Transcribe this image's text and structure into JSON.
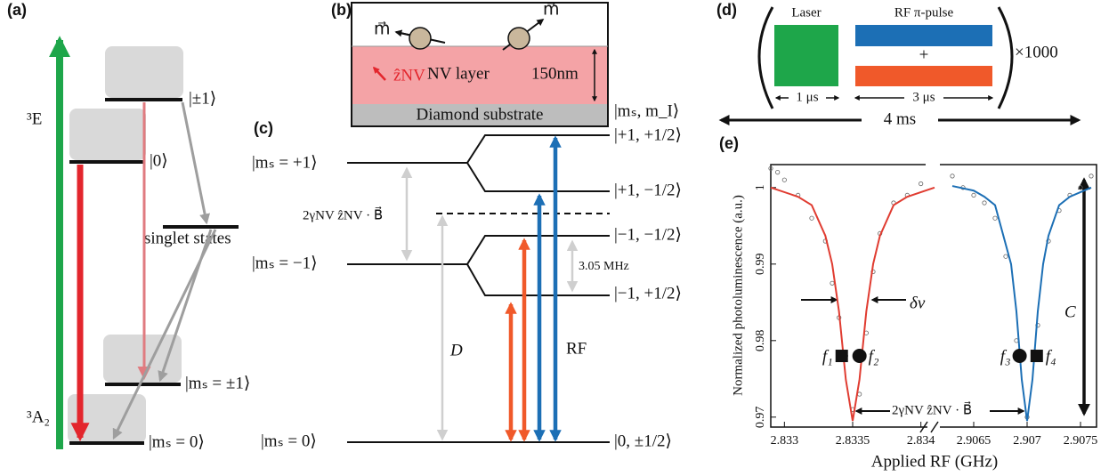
{
  "panel_a": {
    "label": "(a)",
    "excited": "³E",
    "ground": "³A₂",
    "levels": [
      "|±1⟩",
      "|0⟩",
      "singlet states",
      "|mₛ = ±1⟩",
      "|mₛ = 0⟩"
    ]
  },
  "panel_b": {
    "label": "(b)",
    "moment": "m⃗",
    "axis": "ẑNV",
    "layer": "NV layer",
    "thickness": "150nm",
    "substrate": "Diamond substrate"
  },
  "panel_c": {
    "label": "(c)",
    "basis": "|mₛ, m_I⟩",
    "levels_left": [
      "|mₛ = +1⟩",
      "|mₛ = −1⟩",
      "|mₛ = 0⟩"
    ],
    "levels_right": [
      "|+1, +1/2⟩",
      "|+1, −1/2⟩",
      "|−1, −1/2⟩",
      "|−1, +1/2⟩",
      "|0, ±1/2⟩"
    ],
    "zeeman": "2γNV ẑNV · B⃗",
    "zero_field": "D",
    "hyperfine": "3.05 MHz",
    "drive": "RF"
  },
  "panel_d": {
    "label": "(d)",
    "laser": "Laser",
    "rf": "RF π-pulse",
    "plus": "+",
    "repeat": "×1000",
    "laser_time": "1 μs",
    "rf_time": "3 μs",
    "period": "4 ms"
  },
  "chart_data": {
    "type": "line",
    "label": "(e)",
    "xlabel": "Applied RF (GHz)",
    "ylabel": "Normalized photoluminescence (a.u.)",
    "x_segments": [
      {
        "xlim": [
          2.8329,
          2.8341
        ],
        "xticks": [
          2.833,
          2.8335,
          2.834
        ]
      },
      {
        "xlim": [
          2.9062,
          2.90765
        ],
        "xticks": [
          2.9065,
          2.907,
          2.9075
        ]
      }
    ],
    "ylim": [
      0.9687,
      1.003
    ],
    "yticks": [
      0.97,
      0.98,
      0.99,
      1
    ],
    "series": [
      {
        "style": "points",
        "segment": 0,
        "color": "#666666",
        "x": [
          2.8329,
          2.83295,
          2.833,
          2.8331,
          2.8332,
          2.8333,
          2.83335,
          2.8334,
          2.83345,
          2.8335,
          2.83355,
          2.8336,
          2.83365,
          2.8337,
          2.8338,
          2.8339,
          2.834
        ],
        "values": [
          1.0025,
          1.002,
          1.001,
          0.999,
          0.996,
          0.993,
          0.9875,
          0.983,
          0.978,
          0.971,
          0.973,
          0.981,
          0.989,
          0.994,
          0.998,
          0.999,
          1.0005
        ]
      },
      {
        "style": "points",
        "segment": 1,
        "color": "#666666",
        "x": [
          2.9063,
          2.9064,
          2.9065,
          2.9066,
          2.9067,
          2.9068,
          2.9069,
          2.907,
          2.9071,
          2.9072,
          2.9073,
          2.9074,
          2.9075,
          2.9076
        ],
        "values": [
          1.0015,
          1,
          0.999,
          0.998,
          0.996,
          0.991,
          0.98,
          0.97,
          0.982,
          0.993,
          0.997,
          0.999,
          1,
          1.0015
        ]
      },
      {
        "style": "line",
        "segment": 0,
        "color": "#e03c31",
        "x": [
          2.8329,
          2.8331,
          2.8332,
          2.8333,
          2.83335,
          2.8334,
          2.83345,
          2.8335,
          2.83355,
          2.8336,
          2.83365,
          2.8337,
          2.8338,
          2.8339,
          2.8341
        ],
        "values": [
          1,
          0.9988,
          0.9977,
          0.9937,
          0.99,
          0.9838,
          0.9749,
          0.9695,
          0.9749,
          0.9838,
          0.99,
          0.9937,
          0.9977,
          0.9988,
          1
        ]
      },
      {
        "style": "line",
        "segment": 1,
        "color": "#1c6fb5",
        "x": [
          2.9063,
          2.9065,
          2.9066,
          2.9067,
          2.90685,
          2.9069,
          2.90695,
          2.907,
          2.90705,
          2.9071,
          2.90715,
          2.9072,
          2.9073,
          2.9074,
          2.9076
        ],
        "values": [
          1.0002,
          0.9996,
          0.9988,
          0.9977,
          0.99,
          0.9838,
          0.9749,
          0.9695,
          0.9749,
          0.9838,
          0.99,
          0.9937,
          0.9977,
          0.9988,
          1
        ]
      }
    ],
    "markers": [
      {
        "label": "f₁",
        "shape": "square",
        "segment": 0,
        "x": 2.83342,
        "y": 0.978
      },
      {
        "label": "f₂",
        "shape": "circle",
        "segment": 0,
        "x": 2.83355,
        "y": 0.978
      },
      {
        "label": "f₃",
        "shape": "circle",
        "segment": 1,
        "x": 2.90693,
        "y": 0.978
      },
      {
        "label": "f₄",
        "shape": "square",
        "segment": 1,
        "x": 2.90709,
        "y": 0.978
      }
    ],
    "annotations": {
      "linewidth": "δν",
      "splitting": "2γNV ẑNV · B⃗",
      "contrast": "C"
    }
  }
}
